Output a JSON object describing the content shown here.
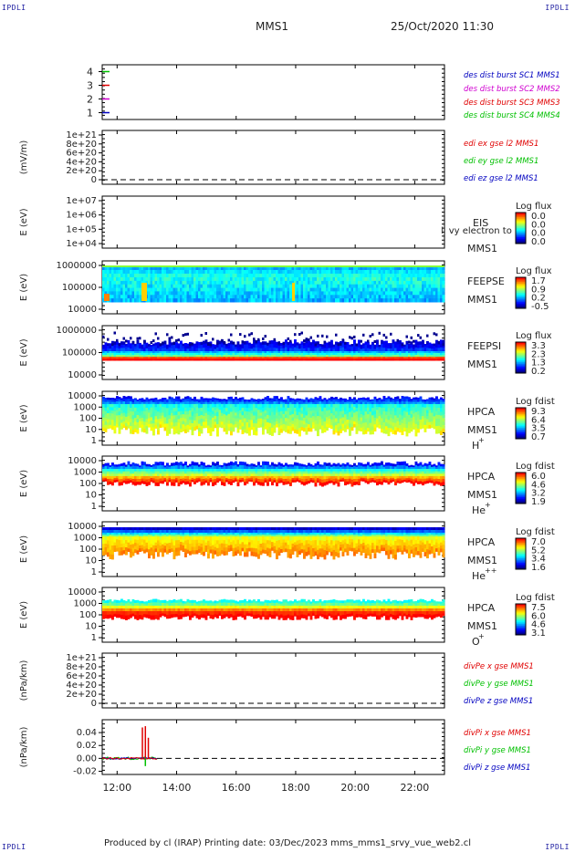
{
  "corners": {
    "tl": "IPDLI",
    "tr": "IPDLI",
    "bl": "IPDLI",
    "br": "IPDLI"
  },
  "header": {
    "spacecraft": "MMS1",
    "datetime": "25/Oct/2020 11:30"
  },
  "footer": "Produced by cl (IRAP)   Printing date: 03/Dec/2023   mms_mms1_srvy_vue_web2.cl",
  "colors": {
    "red": "#e00000",
    "green": "#00c000",
    "blue": "#0000c0",
    "magenta": "#d000d0"
  },
  "chart_data": [
    {
      "type": "line",
      "panel": "data-availability",
      "ylim": [
        0.5,
        4.5
      ],
      "yticks": [
        "1",
        "2",
        "3",
        "4"
      ],
      "series": [
        {
          "name": "des dist burst SC1 MMS1",
          "color": "#0000c0",
          "y": 1
        },
        {
          "name": "des dist burst SC2 MMS2",
          "color": "#d000d0",
          "y": 2
        },
        {
          "name": "des dist burst SC3 MMS3",
          "color": "#e00000",
          "y": 3
        },
        {
          "name": "des dist burst SC4 MMS4",
          "color": "#00c000",
          "y": 4
        }
      ]
    },
    {
      "type": "line",
      "panel": "edi-e",
      "ylabel": "(mV/m)",
      "yticks": [
        "1e+21",
        "8e+20",
        "6e+20",
        "4e+20",
        "2e+20",
        "0"
      ],
      "series": [
        {
          "name": "edi ex gse l2 MMS1",
          "color": "#e00000"
        },
        {
          "name": "edi ey gse l2 MMS1",
          "color": "#00c000"
        },
        {
          "name": "edi ez gse l2 MMS1",
          "color": "#0000c0"
        }
      ]
    },
    {
      "type": "heatmap",
      "panel": "eis",
      "ylabel": "E (eV)",
      "yticks": [
        "1e+07",
        "1e+06",
        "1e+05",
        "1e+04"
      ],
      "labels": [
        "EIS",
        "MMS1"
      ],
      "overlap_label": "ll vy electron to",
      "cbar_title": "Log flux",
      "cbar_ticks": [
        "0.0",
        "0.0",
        "0.0",
        "0.0"
      ]
    },
    {
      "type": "heatmap",
      "panel": "feepse",
      "ylabel": "E (eV)",
      "yticks": [
        "1000000",
        "100000",
        "10000"
      ],
      "labels": [
        "FEEPSE",
        "MMS1"
      ],
      "cbar_title": "Log flux",
      "cbar_ticks": [
        "1.7",
        "0.9",
        "0.2",
        "-0.5"
      ]
    },
    {
      "type": "heatmap",
      "panel": "feepsi",
      "ylabel": "E (eV)",
      "yticks": [
        "1000000",
        "100000",
        "10000"
      ],
      "labels": [
        "FEEPSI",
        "MMS1"
      ],
      "cbar_title": "Log flux",
      "cbar_ticks": [
        "3.3",
        "2.3",
        "1.3",
        "0.2"
      ]
    },
    {
      "type": "heatmap",
      "panel": "hpca-h",
      "ylabel": "E (eV)",
      "yticks": [
        "10000",
        "1000",
        "100",
        "10",
        "1"
      ],
      "labels": [
        "HPCA",
        "MMS1"
      ],
      "species": "H",
      "species_sup": "+",
      "cbar_title": "Log fdist",
      "cbar_ticks": [
        "9.3",
        "6.4",
        "3.5",
        "0.7"
      ]
    },
    {
      "type": "heatmap",
      "panel": "hpca-he",
      "ylabel": "E (eV)",
      "yticks": [
        "10000",
        "1000",
        "100",
        "10",
        "1"
      ],
      "labels": [
        "HPCA",
        "MMS1"
      ],
      "species": "He",
      "species_sup": "+",
      "cbar_title": "Log fdist",
      "cbar_ticks": [
        "6.0",
        "4.6",
        "3.2",
        "1.9"
      ]
    },
    {
      "type": "heatmap",
      "panel": "hpca-he2",
      "ylabel": "E (eV)",
      "yticks": [
        "10000",
        "1000",
        "100",
        "10",
        "1"
      ],
      "labels": [
        "HPCA",
        "MMS1"
      ],
      "species": "He",
      "species_sup": "++",
      "cbar_title": "Log fdist",
      "cbar_ticks": [
        "7.0",
        "5.2",
        "3.4",
        "1.6"
      ]
    },
    {
      "type": "heatmap",
      "panel": "hpca-o",
      "ylabel": "E (eV)",
      "yticks": [
        "10000",
        "1000",
        "100",
        "10",
        "1"
      ],
      "labels": [
        "HPCA",
        "MMS1"
      ],
      "species": "O",
      "species_sup": "+",
      "cbar_title": "Log fdist",
      "cbar_ticks": [
        "7.5",
        "6.0",
        "4.6",
        "3.1"
      ]
    },
    {
      "type": "line",
      "panel": "divpe",
      "ylabel": "(nPa/km)",
      "yticks": [
        "1e+21",
        "8e+20",
        "6e+20",
        "4e+20",
        "2e+20",
        "0"
      ],
      "series": [
        {
          "name": "divPe x gse MMS1",
          "color": "#e00000"
        },
        {
          "name": "divPe y gse MMS1",
          "color": "#00c000"
        },
        {
          "name": "divPe z gse MMS1",
          "color": "#0000c0"
        }
      ]
    },
    {
      "type": "line",
      "panel": "divpi",
      "ylabel": "(nPa/km)",
      "ylim": [
        -0.025,
        0.06
      ],
      "yticks": [
        "0.04",
        "0.02",
        "0.00",
        "-0.02"
      ],
      "series": [
        {
          "name": "divPi x gse MMS1",
          "color": "#e00000"
        },
        {
          "name": "divPi y gse MMS1",
          "color": "#00c000"
        },
        {
          "name": "divPi z gse MMS1",
          "color": "#0000c0"
        }
      ],
      "peaks": {
        "x_hours": [
          12.85,
          12.95,
          13.05
        ],
        "values": [
          0.048,
          0.05,
          0.032
        ],
        "end_hour": 13.35
      }
    }
  ],
  "xaxis": {
    "range_hours": [
      11.5,
      23.0
    ],
    "ticks": [
      "12:00",
      "14:00",
      "16:00",
      "18:00",
      "20:00",
      "22:00"
    ],
    "tick_hours": [
      12,
      14,
      16,
      18,
      20,
      22
    ]
  }
}
